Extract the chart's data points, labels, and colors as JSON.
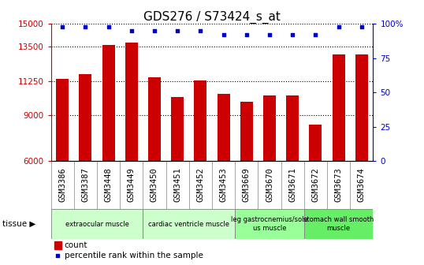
{
  "title": "GDS276 / S73424_s_at",
  "categories": [
    "GSM3386",
    "GSM3387",
    "GSM3448",
    "GSM3449",
    "GSM3450",
    "GSM3451",
    "GSM3452",
    "GSM3453",
    "GSM3669",
    "GSM3670",
    "GSM3671",
    "GSM3672",
    "GSM3673",
    "GSM3674"
  ],
  "counts": [
    11400,
    11700,
    13600,
    13750,
    11500,
    10200,
    11300,
    10400,
    9900,
    10300,
    10300,
    8400,
    13000,
    13000
  ],
  "percentiles": [
    98,
    98,
    98,
    95,
    95,
    95,
    95,
    92,
    92,
    92,
    92,
    92,
    98,
    98
  ],
  "bar_color": "#cc0000",
  "dot_color": "#0000cc",
  "ylim_left": [
    6000,
    15000
  ],
  "yticks_left": [
    6000,
    9000,
    11250,
    13500,
    15000
  ],
  "ylim_right": [
    0,
    100
  ],
  "yticks_right": [
    0,
    25,
    50,
    75,
    100
  ],
  "grid_values": [
    9000,
    11250,
    13500,
    15000
  ],
  "tissue_groups": [
    {
      "label": "extraocular muscle",
      "start": 0,
      "end": 4,
      "color": "#ccffcc"
    },
    {
      "label": "cardiac ventricle muscle",
      "start": 4,
      "end": 8,
      "color": "#ccffcc"
    },
    {
      "label": "leg gastrocnemius/sole\nus muscle",
      "start": 8,
      "end": 11,
      "color": "#99ff99"
    },
    {
      "label": "stomach wall smooth\nmuscle",
      "start": 11,
      "end": 14,
      "color": "#66ee66"
    }
  ],
  "tissue_label": "tissue",
  "legend_count_label": "count",
  "legend_pct_label": "percentile rank within the sample",
  "title_fontsize": 11,
  "tick_fontsize": 7.5
}
